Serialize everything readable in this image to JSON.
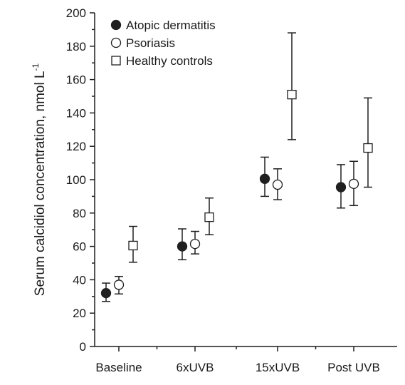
{
  "chart_data": {
    "type": "scatter",
    "categories": [
      "Baseline",
      "6xUVB",
      "15xUVB",
      "Post UVB"
    ],
    "ylabel": "Serum calcidiol concentration, nmol L",
    "ylabel_superscript": "-1",
    "xlabel": "",
    "ylim": [
      0,
      200
    ],
    "yticks": [
      "0",
      "20",
      "40",
      "60",
      "80",
      "100",
      "120",
      "140",
      "160",
      "180",
      "200"
    ],
    "grid": false,
    "legend_position": "top-left",
    "series": [
      {
        "name": "Atopic dermatitis",
        "marker": "filled-circle",
        "values": [
          32,
          60,
          100.5,
          95.5
        ],
        "err_low": [
          27,
          52,
          90,
          83
        ],
        "err_high": [
          38,
          70.5,
          113.5,
          109
        ]
      },
      {
        "name": "Psoriasis",
        "marker": "open-circle",
        "values": [
          37,
          61.5,
          97,
          97.5
        ],
        "err_low": [
          31.5,
          55.5,
          88,
          84.5
        ],
        "err_high": [
          42,
          69,
          106.5,
          111
        ]
      },
      {
        "name": "Healthy controls",
        "marker": "open-square",
        "values": [
          60.5,
          77.5,
          151,
          119
        ],
        "err_low": [
          50.5,
          67,
          124,
          95.5
        ],
        "err_high": [
          72,
          89,
          188,
          149
        ]
      }
    ],
    "colors": {
      "axis": "#1f1f1f",
      "marker": "#1f1f1f",
      "background": "#ffffff"
    }
  }
}
